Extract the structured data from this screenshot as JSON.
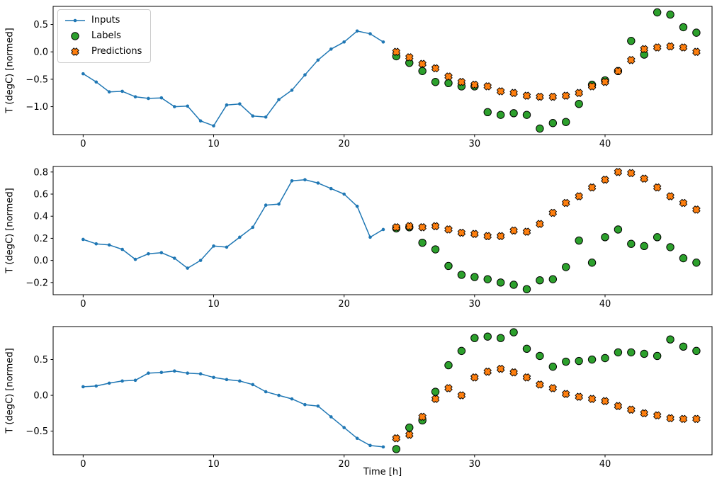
{
  "chart_data": {
    "type": "line",
    "title": "",
    "xlabel": "Time [h]",
    "grid": false,
    "xlim": [
      -2.3,
      48.2
    ],
    "xticks": [
      0,
      10,
      20,
      30,
      40
    ],
    "legend": {
      "position": "upper left",
      "entries": [
        "Inputs",
        "Labels",
        "Predictions"
      ]
    },
    "colors": {
      "inputs": "#1f77b4",
      "labels": "#2ca02c",
      "predictions": "#ff7f0e",
      "marker_edge": "#000000",
      "axes_edge": "#000000"
    },
    "inputs_x": [
      0,
      1,
      2,
      3,
      4,
      5,
      6,
      7,
      8,
      9,
      10,
      11,
      12,
      13,
      14,
      15,
      16,
      17,
      18,
      19,
      20,
      21,
      22,
      23
    ],
    "future_x": [
      24,
      25,
      26,
      27,
      28,
      29,
      30,
      31,
      32,
      33,
      34,
      35,
      36,
      37,
      38,
      39,
      40,
      41,
      42,
      43,
      44,
      45,
      46,
      47
    ],
    "subplots": [
      {
        "ylabel": "T (degC) [normed]",
        "ylim": [
          -1.51,
          0.83
        ],
        "yticks": [
          0.5,
          0.0,
          -0.5,
          -1.0
        ],
        "inputs": [
          -0.4,
          -0.55,
          -0.73,
          -0.72,
          -0.82,
          -0.85,
          -0.84,
          -1.0,
          -0.99,
          -1.26,
          -1.35,
          -0.97,
          -0.95,
          -1.17,
          -1.19,
          -0.87,
          -0.7,
          -0.42,
          -0.15,
          0.05,
          0.18,
          0.38,
          0.33,
          0.18
        ],
        "labels": [
          -0.08,
          -0.2,
          -0.35,
          -0.55,
          -0.57,
          -0.63,
          -0.63,
          -1.1,
          -1.15,
          -1.12,
          -1.15,
          -1.4,
          -1.3,
          -1.28,
          -0.95,
          -0.6,
          -0.52,
          -0.35,
          0.2,
          -0.05,
          0.72,
          0.68,
          0.45,
          0.35
        ],
        "predictions": [
          0.0,
          -0.1,
          -0.22,
          -0.3,
          -0.45,
          -0.55,
          -0.6,
          -0.63,
          -0.72,
          -0.75,
          -0.8,
          -0.82,
          -0.82,
          -0.8,
          -0.75,
          -0.63,
          -0.55,
          -0.35,
          -0.15,
          0.05,
          0.08,
          0.1,
          0.08,
          0.0
        ]
      },
      {
        "ylabel": "T (degC) [normed]",
        "ylim": [
          -0.31,
          0.85
        ],
        "yticks": [
          0.8,
          0.6,
          0.4,
          0.2,
          0.0,
          -0.2
        ],
        "inputs": [
          0.19,
          0.15,
          0.14,
          0.1,
          0.01,
          0.06,
          0.07,
          0.02,
          -0.07,
          0.0,
          0.13,
          0.12,
          0.21,
          0.3,
          0.5,
          0.51,
          0.72,
          0.73,
          0.7,
          0.65,
          0.6,
          0.49,
          0.21,
          0.28
        ],
        "labels": [
          0.29,
          0.3,
          0.16,
          0.1,
          -0.05,
          -0.13,
          -0.15,
          -0.17,
          -0.2,
          -0.22,
          -0.26,
          -0.18,
          -0.17,
          -0.06,
          0.18,
          -0.02,
          0.21,
          0.28,
          0.15,
          0.13,
          0.21,
          0.12,
          0.02,
          -0.02
        ],
        "predictions": [
          0.3,
          0.31,
          0.3,
          0.31,
          0.28,
          0.25,
          0.24,
          0.22,
          0.22,
          0.27,
          0.26,
          0.33,
          0.43,
          0.52,
          0.58,
          0.66,
          0.73,
          0.8,
          0.79,
          0.74,
          0.66,
          0.58,
          0.52,
          0.46
        ]
      },
      {
        "ylabel": "T (degC) [normed]",
        "ylim": [
          -0.83,
          0.96
        ],
        "yticks": [
          0.5,
          0.0,
          -0.5
        ],
        "inputs": [
          0.12,
          0.13,
          0.17,
          0.2,
          0.21,
          0.31,
          0.32,
          0.34,
          0.31,
          0.3,
          0.25,
          0.22,
          0.2,
          0.15,
          0.05,
          0.0,
          -0.05,
          -0.13,
          -0.15,
          -0.3,
          -0.45,
          -0.6,
          -0.7,
          -0.72
        ],
        "labels": [
          -0.75,
          -0.45,
          -0.35,
          0.05,
          0.42,
          0.62,
          0.8,
          0.82,
          0.8,
          0.88,
          0.65,
          0.55,
          0.4,
          0.47,
          0.48,
          0.5,
          0.52,
          0.6,
          0.6,
          0.58,
          0.55,
          0.78,
          0.68,
          0.62
        ],
        "predictions": [
          -0.6,
          -0.55,
          -0.3,
          -0.05,
          0.1,
          0.0,
          0.25,
          0.33,
          0.37,
          0.32,
          0.25,
          0.15,
          0.1,
          0.02,
          -0.02,
          -0.05,
          -0.08,
          -0.15,
          -0.2,
          -0.25,
          -0.28,
          -0.32,
          -0.33,
          -0.33
        ]
      }
    ]
  }
}
